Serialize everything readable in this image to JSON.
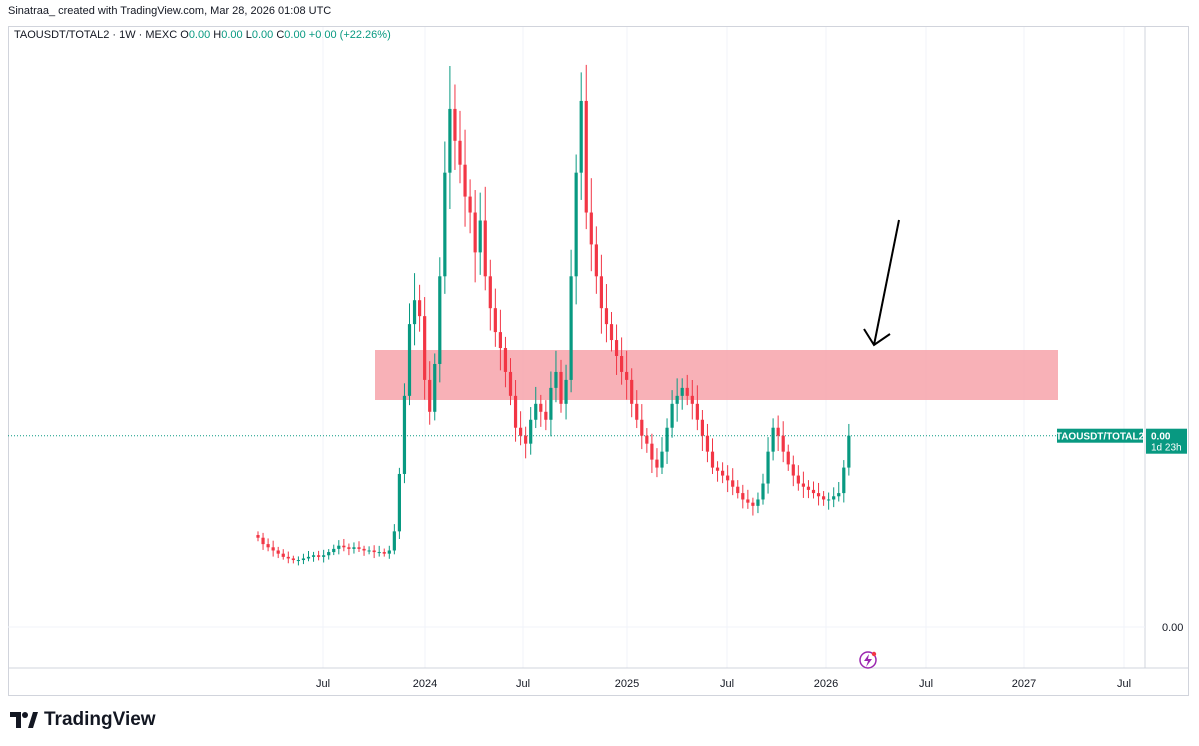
{
  "header": {
    "text": "Sinatraa_ created with TradingView.com, Mar 28, 2026 01:08 UTC"
  },
  "legend": {
    "symbol": "TAOUSDT/TOTAL2 · 1W · MEXC",
    "o_label": "O",
    "o_value": "0.00",
    "h_label": "H",
    "h_value": "0.00",
    "l_label": "L",
    "l_value": "0.00",
    "c_label": "C",
    "c_value": "0.00",
    "change": "+0.00 (+22.26%)"
  },
  "price_label": {
    "symbol": "TAOUSDT/TOTAL2",
    "value": "0.00",
    "countdown": "1d 23h"
  },
  "brand": {
    "name": "TradingView"
  },
  "colors": {
    "up": "#089981",
    "down": "#f23645",
    "zone": "#f7a3aa",
    "arrow": "#000000"
  },
  "chart_data": {
    "type": "candlestick",
    "symbol": "TAOUSDT/TOTAL2",
    "interval": "1W",
    "exchange": "MEXC",
    "y_axis": {
      "tick_labels": [
        "0.00"
      ],
      "scale": "linear"
    },
    "x_axis": {
      "tick_labels": [
        "Jul",
        "2024",
        "Jul",
        "2025",
        "Jul",
        "2026",
        "Jul",
        "2027",
        "Jul"
      ]
    },
    "grid": "vertical",
    "last_change_percent": 22.26,
    "close_series_approx": [
      0.56,
      0.52,
      0.5,
      0.48,
      0.46,
      0.44,
      0.43,
      0.42,
      0.42,
      0.43,
      0.44,
      0.45,
      0.44,
      0.45,
      0.47,
      0.49,
      0.51,
      0.5,
      0.49,
      0.5,
      0.49,
      0.48,
      0.48,
      0.47,
      0.47,
      0.46,
      0.48,
      0.6,
      0.96,
      1.45,
      1.9,
      2.05,
      1.95,
      1.55,
      1.35,
      1.65,
      2.2,
      2.85,
      3.25,
      3.05,
      2.9,
      2.7,
      2.6,
      2.35,
      2.55,
      2.2,
      2.0,
      1.85,
      1.75,
      1.6,
      1.45,
      1.25,
      1.2,
      1.15,
      1.3,
      1.4,
      1.35,
      1.3,
      1.5,
      1.6,
      1.4,
      1.55,
      2.2,
      2.85,
      3.3,
      2.6,
      2.4,
      2.2,
      2.0,
      1.9,
      1.8,
      1.7,
      1.6,
      1.55,
      1.4,
      1.3,
      1.2,
      1.15,
      1.05,
      1.0,
      1.1,
      1.25,
      1.4,
      1.45,
      1.5,
      1.45,
      1.4,
      1.3,
      1.2,
      1.1,
      1.0,
      0.98,
      0.95,
      0.92,
      0.88,
      0.84,
      0.8,
      0.78,
      0.76,
      0.8,
      0.9,
      1.1,
      1.25,
      1.2,
      1.1,
      1.02,
      0.95,
      0.9,
      0.88,
      0.86,
      0.84,
      0.82,
      0.8,
      0.8,
      0.82,
      0.84,
      1.0,
      1.2
    ],
    "annotations": [
      {
        "type": "rectangle-zone",
        "color": "#f7a3aa"
      },
      {
        "type": "arrow",
        "pointing": "down"
      }
    ]
  }
}
